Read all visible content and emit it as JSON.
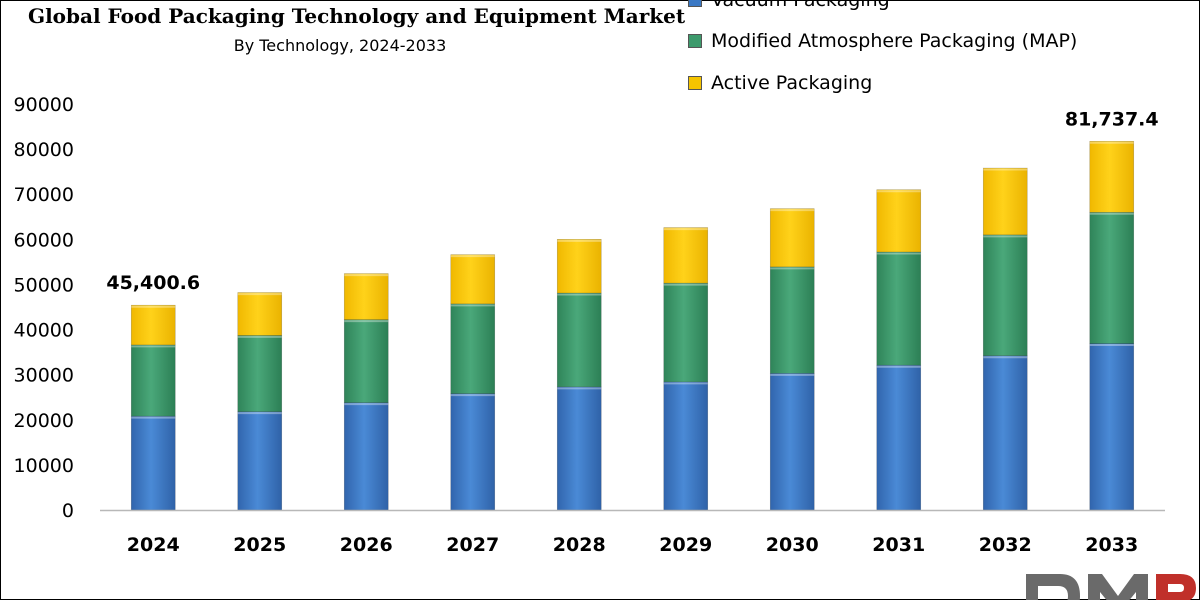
{
  "chart_data": {
    "type": "bar",
    "stacked": true,
    "title": "Global Food Packaging Technology and Equipment Market",
    "subtitle": "By Technology, 2024-2033",
    "categories": [
      "2024",
      "2025",
      "2026",
      "2027",
      "2028",
      "2029",
      "2030",
      "2031",
      "2032",
      "2033"
    ],
    "series": [
      {
        "name": "Vacuum Packaging",
        "color": "#3a78c4",
        "values": [
          20800,
          21800,
          23800,
          25800,
          27300,
          28400,
          30300,
          32100,
          34200,
          36900
        ]
      },
      {
        "name": "Modified Atmosphere Packaging (MAP)",
        "color": "#3d9a6c",
        "values": [
          15800,
          16900,
          18400,
          19900,
          20800,
          21900,
          23600,
          25100,
          26800,
          29100
        ]
      },
      {
        "name": "Active Packaging",
        "color": "#f5c400",
        "values": [
          8800,
          9500,
          10200,
          10900,
          11900,
          12300,
          12900,
          13800,
          14800,
          15737
        ]
      }
    ],
    "ylim": [
      0,
      90000
    ],
    "yticks": [
      "0",
      "10000",
      "20000",
      "30000",
      "40000",
      "50000",
      "60000",
      "70000",
      "80000",
      "90000"
    ],
    "annotations": [
      {
        "category": "2024",
        "label": "45,400.6"
      },
      {
        "category": "2033",
        "label": "81,737.4"
      }
    ],
    "xlabel": "",
    "ylabel": "",
    "grid": false,
    "legend": "top-right"
  },
  "logo": {
    "icon": "dmr-logo-icon",
    "text": "DMR",
    "color": "#666666"
  }
}
